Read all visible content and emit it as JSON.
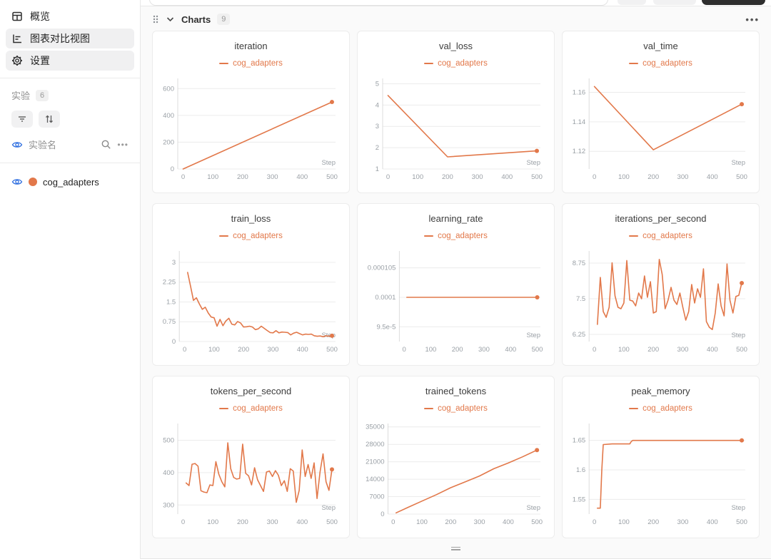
{
  "theme": {
    "accent": "#e2784a",
    "eye_blue": "#2f6fe0",
    "grid_line": "#ececec",
    "axis_line": "#dcdcdc",
    "tick_text": "#9aa0a6"
  },
  "sidebar": {
    "nav": [
      {
        "label": "概览"
      },
      {
        "label": "图表对比视图"
      },
      {
        "label": "设置"
      }
    ],
    "experiments_label": "实验",
    "experiments_count": "6",
    "experiment_name_label": "实验名",
    "experiments": [
      {
        "name": "cog_adapters",
        "color": "#e2784a"
      }
    ]
  },
  "main": {
    "section_title": "Charts",
    "section_count": "9"
  },
  "chart_data": [
    {
      "type": "line",
      "title": "iteration",
      "series": "cog_adapters",
      "xlabel": "Step",
      "xticks": [
        0,
        100,
        200,
        300,
        400,
        500
      ],
      "xlim": [
        -18,
        512
      ],
      "yticks": [
        0,
        200,
        400,
        600
      ],
      "ytick_labels": [
        "0",
        "200",
        "400",
        "600"
      ],
      "ylim": [
        0,
        660
      ],
      "x": [
        0,
        500
      ],
      "y": [
        0,
        500
      ]
    },
    {
      "type": "line",
      "title": "val_loss",
      "series": "cog_adapters",
      "xlabel": "Step",
      "xticks": [
        0,
        100,
        200,
        300,
        400,
        500
      ],
      "xlim": [
        -18,
        512
      ],
      "yticks": [
        1,
        2,
        3,
        4,
        5
      ],
      "ytick_labels": [
        "1",
        "2",
        "3",
        "4",
        "5"
      ],
      "ylim": [
        1,
        5.15
      ],
      "x": [
        0,
        200,
        500
      ],
      "y": [
        4.45,
        1.57,
        1.85
      ]
    },
    {
      "type": "line",
      "title": "val_time",
      "series": "cog_adapters",
      "xlabel": "Step",
      "xticks": [
        0,
        100,
        200,
        300,
        400,
        500
      ],
      "xlim": [
        -18,
        512
      ],
      "yticks": [
        1.12,
        1.14,
        1.16
      ],
      "ytick_labels": [
        "1.12",
        "1.14",
        "1.16"
      ],
      "ylim": [
        1.108,
        1.168
      ],
      "x": [
        0,
        200,
        500
      ],
      "y": [
        1.164,
        1.121,
        1.152
      ]
    },
    {
      "type": "line",
      "title": "train_loss",
      "series": "cog_adapters",
      "xlabel": "Step",
      "xticks": [
        0,
        100,
        200,
        300,
        400,
        500
      ],
      "xlim": [
        -18,
        512
      ],
      "yticks": [
        0,
        0.75,
        1.5,
        2.25,
        3
      ],
      "ytick_labels": [
        "0",
        "0.75",
        "1.5",
        "2.25",
        "3"
      ],
      "ylim": [
        0,
        3.35
      ],
      "x": [
        10,
        20,
        30,
        40,
        50,
        60,
        70,
        80,
        90,
        100,
        110,
        120,
        130,
        140,
        150,
        160,
        170,
        180,
        190,
        200,
        210,
        220,
        230,
        240,
        250,
        260,
        270,
        280,
        290,
        300,
        310,
        320,
        330,
        340,
        350,
        360,
        370,
        380,
        390,
        400,
        410,
        420,
        430,
        440,
        450,
        460,
        470,
        480,
        490,
        500
      ],
      "y": [
        2.62,
        2.1,
        1.56,
        1.66,
        1.42,
        1.22,
        1.3,
        1.08,
        0.93,
        0.9,
        0.58,
        0.84,
        0.6,
        0.78,
        0.88,
        0.66,
        0.63,
        0.76,
        0.7,
        0.55,
        0.56,
        0.58,
        0.55,
        0.45,
        0.48,
        0.58,
        0.5,
        0.42,
        0.34,
        0.33,
        0.41,
        0.33,
        0.36,
        0.35,
        0.34,
        0.25,
        0.32,
        0.35,
        0.3,
        0.25,
        0.28,
        0.27,
        0.28,
        0.22,
        0.2,
        0.21,
        0.18,
        0.22,
        0.2,
        0.22
      ]
    },
    {
      "type": "line",
      "title": "learning_rate",
      "series": "cog_adapters",
      "xlabel": "Step",
      "xticks": [
        0,
        100,
        200,
        300,
        400,
        500
      ],
      "xlim": [
        -18,
        512
      ],
      "yticks": [
        9.5e-05,
        0.0001,
        0.000105
      ],
      "ytick_labels": [
        "9.5e-5",
        "0.0001",
        "0.000105"
      ],
      "ylim": [
        9.25e-05,
        0.0001075
      ],
      "x": [
        10,
        500
      ],
      "y": [
        0.0001,
        0.0001
      ]
    },
    {
      "type": "line",
      "title": "iterations_per_second",
      "series": "cog_adapters",
      "xlabel": "Step",
      "xticks": [
        0,
        100,
        200,
        300,
        400,
        500
      ],
      "xlim": [
        -18,
        512
      ],
      "yticks": [
        6.25,
        7.5,
        8.75
      ],
      "ytick_labels": [
        "6.25",
        "7.5",
        "8.75"
      ],
      "ylim": [
        6.0,
        9.1
      ],
      "x": [
        10,
        20,
        30,
        40,
        50,
        60,
        70,
        80,
        90,
        100,
        110,
        120,
        130,
        140,
        150,
        160,
        170,
        180,
        190,
        200,
        210,
        220,
        230,
        240,
        250,
        260,
        270,
        280,
        290,
        300,
        310,
        320,
        330,
        340,
        350,
        360,
        370,
        380,
        390,
        400,
        410,
        420,
        430,
        440,
        450,
        460,
        470,
        480,
        490,
        500
      ],
      "y": [
        6.6,
        8.25,
        7.05,
        6.85,
        7.2,
        8.76,
        7.6,
        7.2,
        7.15,
        7.35,
        8.84,
        7.45,
        7.42,
        7.25,
        7.7,
        7.5,
        8.3,
        7.55,
        8.1,
        7.0,
        7.05,
        8.88,
        8.35,
        7.15,
        7.45,
        7.9,
        7.45,
        7.3,
        7.7,
        7.2,
        6.75,
        7.05,
        8.0,
        7.35,
        7.85,
        7.55,
        8.55,
        6.7,
        6.5,
        6.42,
        7.0,
        8.02,
        7.25,
        6.9,
        8.72,
        7.45,
        7.0,
        7.58,
        7.62,
        8.05
      ]
    },
    {
      "type": "line",
      "title": "tokens_per_second",
      "series": "cog_adapters",
      "xlabel": "Step",
      "xticks": [
        0,
        100,
        200,
        300,
        400,
        500
      ],
      "xlim": [
        -18,
        512
      ],
      "yticks": [
        300,
        400,
        500
      ],
      "ytick_labels": [
        "300",
        "400",
        "500"
      ],
      "ylim": [
        272,
        545
      ],
      "x": [
        10,
        20,
        30,
        40,
        50,
        60,
        70,
        80,
        90,
        100,
        110,
        120,
        130,
        140,
        150,
        160,
        170,
        180,
        190,
        200,
        210,
        220,
        230,
        240,
        250,
        260,
        270,
        280,
        290,
        300,
        310,
        320,
        330,
        340,
        350,
        360,
        370,
        380,
        390,
        400,
        410,
        420,
        430,
        440,
        450,
        460,
        470,
        480,
        490,
        500
      ],
      "y": [
        368,
        360,
        426,
        428,
        420,
        344,
        340,
        338,
        362,
        360,
        434,
        395,
        372,
        356,
        492,
        412,
        385,
        380,
        382,
        488,
        398,
        390,
        362,
        415,
        378,
        360,
        342,
        402,
        405,
        388,
        406,
        392,
        360,
        375,
        342,
        412,
        405,
        308,
        345,
        470,
        388,
        425,
        382,
        430,
        320,
        402,
        458,
        372,
        345,
        410
      ]
    },
    {
      "type": "line",
      "title": "trained_tokens",
      "series": "cog_adapters",
      "xlabel": "Step",
      "xticks": [
        0,
        100,
        200,
        300,
        400,
        500
      ],
      "xlim": [
        -18,
        512
      ],
      "yticks": [
        0,
        7000,
        14000,
        21000,
        28000,
        35000
      ],
      "ytick_labels": [
        "0",
        "7000",
        "14000",
        "21000",
        "28000",
        "35000"
      ],
      "ylim": [
        0,
        35500
      ],
      "x": [
        10,
        50,
        100,
        150,
        200,
        250,
        300,
        350,
        400,
        450,
        500
      ],
      "y": [
        500,
        2600,
        5200,
        7800,
        10600,
        12900,
        15300,
        18200,
        20500,
        23000,
        25700
      ]
    },
    {
      "type": "line",
      "title": "peak_memory",
      "series": "cog_adapters",
      "xlabel": "Step",
      "xticks": [
        0,
        100,
        200,
        300,
        400,
        500
      ],
      "xlim": [
        -18,
        512
      ],
      "yticks": [
        1.55,
        1.6,
        1.65
      ],
      "ytick_labels": [
        "1.55",
        "1.6",
        "1.65"
      ],
      "ylim": [
        1.525,
        1.675
      ],
      "x": [
        10,
        20,
        25,
        30,
        60,
        100,
        120,
        125,
        130,
        200,
        300,
        400,
        500
      ],
      "y": [
        1.535,
        1.535,
        1.6,
        1.643,
        1.644,
        1.644,
        1.644,
        1.648,
        1.65,
        1.65,
        1.65,
        1.65,
        1.65
      ]
    }
  ]
}
